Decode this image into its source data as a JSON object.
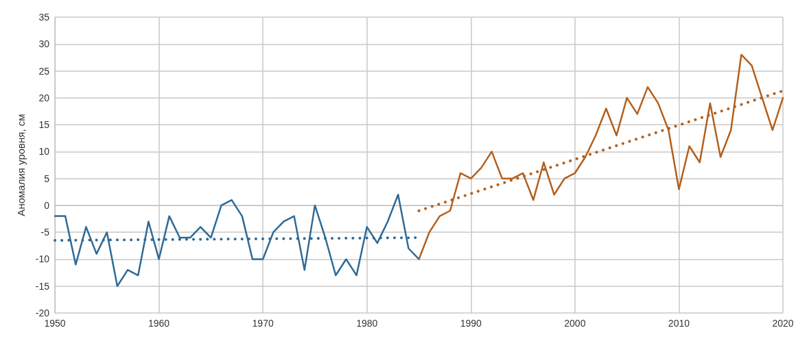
{
  "chart_data": {
    "type": "line",
    "ylabel": "Аномалия уровня, см",
    "xlim": [
      1950,
      2020
    ],
    "xticks": [
      1950,
      1960,
      1970,
      1980,
      1990,
      2000,
      2010,
      2020
    ],
    "ylim": [
      -20,
      35
    ],
    "yticks": [
      -20,
      -15,
      -10,
      -5,
      0,
      5,
      10,
      15,
      20,
      25,
      30,
      35
    ],
    "grid": true,
    "marker": "none",
    "series": [
      {
        "color": "#2e6a97",
        "line_style": "solid",
        "x": [
          1950,
          1951,
          1952,
          1953,
          1954,
          1955,
          1956,
          1957,
          1958,
          1959,
          1960,
          1961,
          1962,
          1963,
          1964,
          1965,
          1966,
          1967,
          1968,
          1969,
          1970,
          1971,
          1972,
          1973,
          1974,
          1975,
          1976,
          1977,
          1978,
          1979,
          1980,
          1981,
          1982,
          1983,
          1984,
          1985
        ],
        "values": [
          -2,
          -2,
          -11,
          -4,
          -9,
          -5,
          -15,
          -12,
          -13,
          -3,
          -10,
          -2,
          -6,
          -6,
          -4,
          -6,
          0,
          1,
          -2,
          -10,
          -10,
          -5,
          -3,
          -2,
          -12,
          0,
          -6,
          -13,
          -10,
          -13,
          -4,
          -7,
          -3,
          2,
          -8,
          -10
        ]
      },
      {
        "color": "#b35f1c",
        "line_style": "solid",
        "x": [
          1985,
          1986,
          1987,
          1988,
          1989,
          1990,
          1991,
          1992,
          1993,
          1994,
          1995,
          1996,
          1997,
          1998,
          1999,
          2000,
          2001,
          2002,
          2003,
          2004,
          2005,
          2006,
          2007,
          2008,
          2009,
          2010,
          2011,
          2012,
          2013,
          2014,
          2015,
          2016,
          2017,
          2018,
          2019,
          2020
        ],
        "values": [
          -10,
          -5,
          -2,
          -1,
          6,
          5,
          7,
          10,
          5,
          5,
          6,
          1,
          8,
          2,
          5,
          6,
          9,
          13,
          18,
          13,
          20,
          17,
          22,
          19,
          14,
          3,
          11,
          8,
          19,
          9,
          14,
          28,
          26,
          20,
          14,
          20
        ]
      },
      {
        "color": "#2e6a97",
        "line_style": "dotted",
        "x": [
          1950,
          1985
        ],
        "values": [
          -6.5,
          -6
        ]
      },
      {
        "color": "#b35f1c",
        "line_style": "dotted",
        "x": [
          1985,
          2020
        ],
        "values": [
          -1,
          21.3
        ]
      }
    ]
  }
}
